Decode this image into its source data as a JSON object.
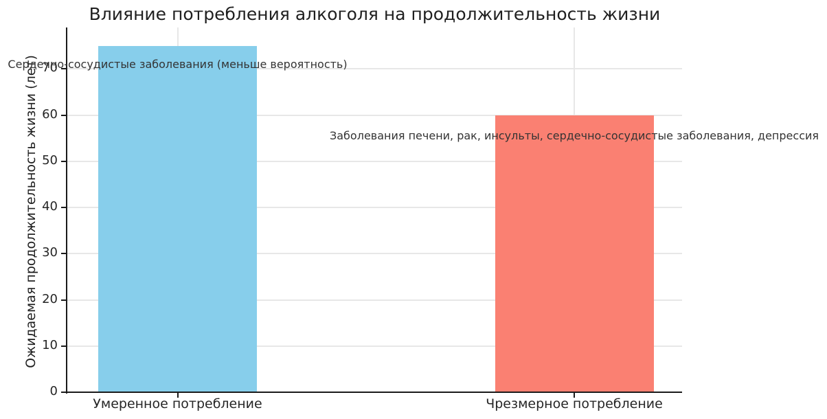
{
  "chart_data": {
    "type": "bar",
    "title": "Влияние потребления алкоголя на продолжительность жизни",
    "xlabel": "",
    "ylabel": "Ожидаемая продолжительность жизни (лет)",
    "categories": [
      "Умеренное потребление",
      "Чрезмерное потребление"
    ],
    "values": [
      75,
      60
    ],
    "bar_colors": [
      "#87CEEB",
      "#FA8072"
    ],
    "yticks": [
      0,
      10,
      20,
      30,
      40,
      50,
      60,
      70
    ],
    "ylim": [
      0,
      79
    ],
    "grid": true,
    "legend": false,
    "background_color": "#ffffff",
    "grid_color": "#e7e7e7",
    "axis_color": "#1a1a1a",
    "text_color": "#262626",
    "annotations": [
      {
        "text": "Сердечно-сосудистые заболевания (меньше вероятность)",
        "bar_index": 0,
        "y_value": 71
      },
      {
        "text": "Заболевания печени, рак, инсульты, сердечно-сосудистые заболевания, депрессия",
        "bar_index": 1,
        "y_value": 55.5
      }
    ]
  }
}
